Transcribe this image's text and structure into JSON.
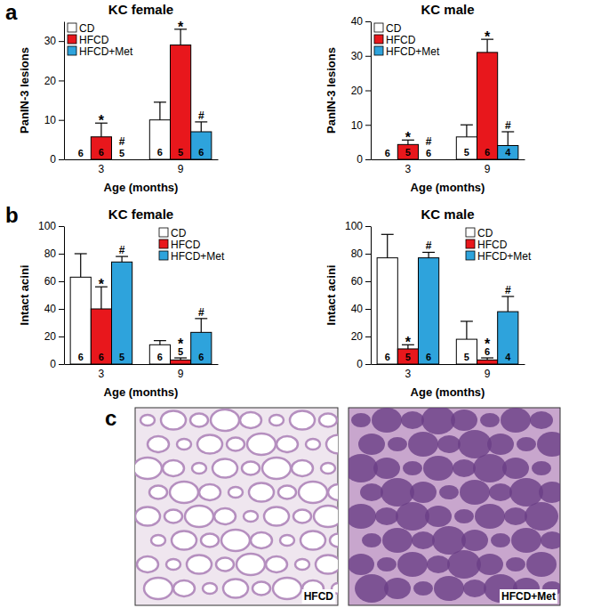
{
  "panel_labels": [
    "a",
    "b",
    "c"
  ],
  "images": [
    {
      "label": "HFCD"
    },
    {
      "label": "HFCD+Met"
    }
  ],
  "chart_data": [
    {
      "type": "bar",
      "title": "KC female",
      "x_label": "Age (months)",
      "y_label": "PanIN-3 lesions",
      "categories": [
        "3",
        "9"
      ],
      "ylim": [
        0,
        35
      ],
      "yticks": [
        0,
        10,
        20,
        30
      ],
      "legend": "upper left",
      "series": [
        {
          "name": "CD",
          "color": "#ffffff",
          "values": [
            0,
            10
          ],
          "errors": [
            0,
            4.5
          ],
          "n": [
            6,
            6
          ],
          "annotations": [
            null,
            null
          ]
        },
        {
          "name": "HFCD",
          "color": "#e8171c",
          "values": [
            5.7,
            29
          ],
          "errors": [
            3.5,
            4
          ],
          "n": [
            6,
            5
          ],
          "annotations": [
            "*",
            "*"
          ]
        },
        {
          "name": "HFCD+Met",
          "color": "#2ea3dc",
          "values": [
            0,
            7
          ],
          "errors": [
            0,
            2.5
          ],
          "n": [
            5,
            6
          ],
          "annotations": [
            "#",
            "#"
          ]
        }
      ]
    },
    {
      "type": "bar",
      "title": "KC male",
      "x_label": "Age (months)",
      "y_label": "PanIN-3 lesions",
      "categories": [
        "3",
        "9"
      ],
      "ylim": [
        0,
        40
      ],
      "yticks": [
        0,
        10,
        20,
        30,
        40
      ],
      "legend": "upper left",
      "series": [
        {
          "name": "CD",
          "color": "#ffffff",
          "values": [
            0,
            6.5
          ],
          "errors": [
            0,
            3.5
          ],
          "n": [
            6,
            5
          ],
          "annotations": [
            null,
            null
          ]
        },
        {
          "name": "HFCD",
          "color": "#e8171c",
          "values": [
            4.3,
            31
          ],
          "errors": [
            1.3,
            3.8
          ],
          "n": [
            5,
            6
          ],
          "annotations": [
            "*",
            "*"
          ]
        },
        {
          "name": "HFCD+Met",
          "color": "#2ea3dc",
          "values": [
            0,
            4
          ],
          "errors": [
            0,
            4
          ],
          "n": [
            6,
            4
          ],
          "annotations": [
            "#",
            "#"
          ]
        }
      ]
    },
    {
      "type": "bar",
      "title": "KC female",
      "x_label": "Age (months)",
      "y_label": "Intact acini",
      "categories": [
        "3",
        "9"
      ],
      "ylim": [
        0,
        100
      ],
      "yticks": [
        0,
        20,
        40,
        60,
        80,
        100
      ],
      "legend": "upper right",
      "series": [
        {
          "name": "CD",
          "color": "#ffffff",
          "values": [
            63,
            14
          ],
          "errors": [
            17,
            3
          ],
          "n": [
            6,
            6
          ],
          "annotations": [
            null,
            null
          ]
        },
        {
          "name": "HFCD",
          "color": "#e8171c",
          "values": [
            40,
            3
          ],
          "errors": [
            16,
            1.5
          ],
          "n": [
            6,
            5
          ],
          "annotations": [
            "*",
            "*"
          ]
        },
        {
          "name": "HFCD+Met",
          "color": "#2ea3dc",
          "values": [
            74,
            23
          ],
          "errors": [
            4,
            10
          ],
          "n": [
            5,
            6
          ],
          "annotations": [
            "#",
            "#"
          ]
        }
      ]
    },
    {
      "type": "bar",
      "title": "KC male",
      "x_label": "Age (months)",
      "y_label": "Intact acini",
      "categories": [
        "3",
        "9"
      ],
      "ylim": [
        0,
        100
      ],
      "yticks": [
        0,
        20,
        40,
        60,
        80,
        100
      ],
      "legend": "upper right",
      "series": [
        {
          "name": "CD",
          "color": "#ffffff",
          "values": [
            77,
            18
          ],
          "errors": [
            17,
            13
          ],
          "n": [
            6,
            5
          ],
          "annotations": [
            null,
            null
          ]
        },
        {
          "name": "HFCD",
          "color": "#e8171c",
          "values": [
            11,
            3
          ],
          "errors": [
            3,
            1.5
          ],
          "n": [
            5,
            6
          ],
          "annotations": [
            "*",
            "*"
          ]
        },
        {
          "name": "HFCD+Met",
          "color": "#2ea3dc",
          "values": [
            77,
            38
          ],
          "errors": [
            4,
            11
          ],
          "n": [
            6,
            4
          ],
          "annotations": [
            "#",
            "#"
          ]
        }
      ]
    }
  ]
}
